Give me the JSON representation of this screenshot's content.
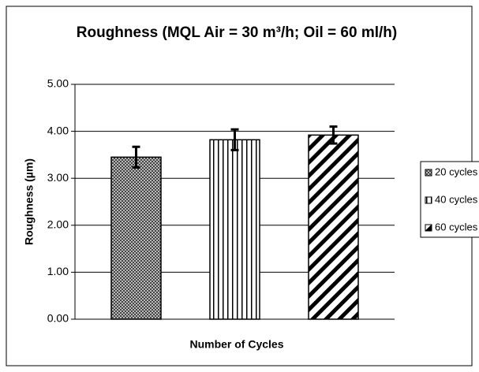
{
  "chart_data": {
    "type": "bar",
    "title": "Roughness (MQL Air = 30 m³/h; Oil = 60 ml/h)",
    "x_label": "Number of Cycles",
    "y_label": "Roughness (µm)",
    "categories": [
      null
    ],
    "series": [
      {
        "name": "20 cycles",
        "color": "#555555",
        "pattern": "checker",
        "values": [
          3.45
        ],
        "errors": [
          0.22
        ]
      },
      {
        "name": "40 cycles",
        "color": "#000000",
        "pattern": "vertical",
        "values": [
          3.82
        ],
        "errors": [
          0.22
        ]
      },
      {
        "name": "60 cycles",
        "color": "#000000",
        "pattern": "diagonal",
        "values": [
          3.92
        ],
        "errors": [
          0.18
        ]
      }
    ],
    "ylim": [
      0,
      5
    ],
    "yticks": [
      {
        "value": 0,
        "label": "0.00"
      },
      {
        "value": 1,
        "label": "1.00"
      },
      {
        "value": 2,
        "label": "2.00"
      },
      {
        "value": 3,
        "label": "3.00"
      },
      {
        "value": 4,
        "label": "4.00"
      },
      {
        "value": 5,
        "label": "5.00"
      }
    ],
    "grid": true,
    "legend": "right"
  }
}
